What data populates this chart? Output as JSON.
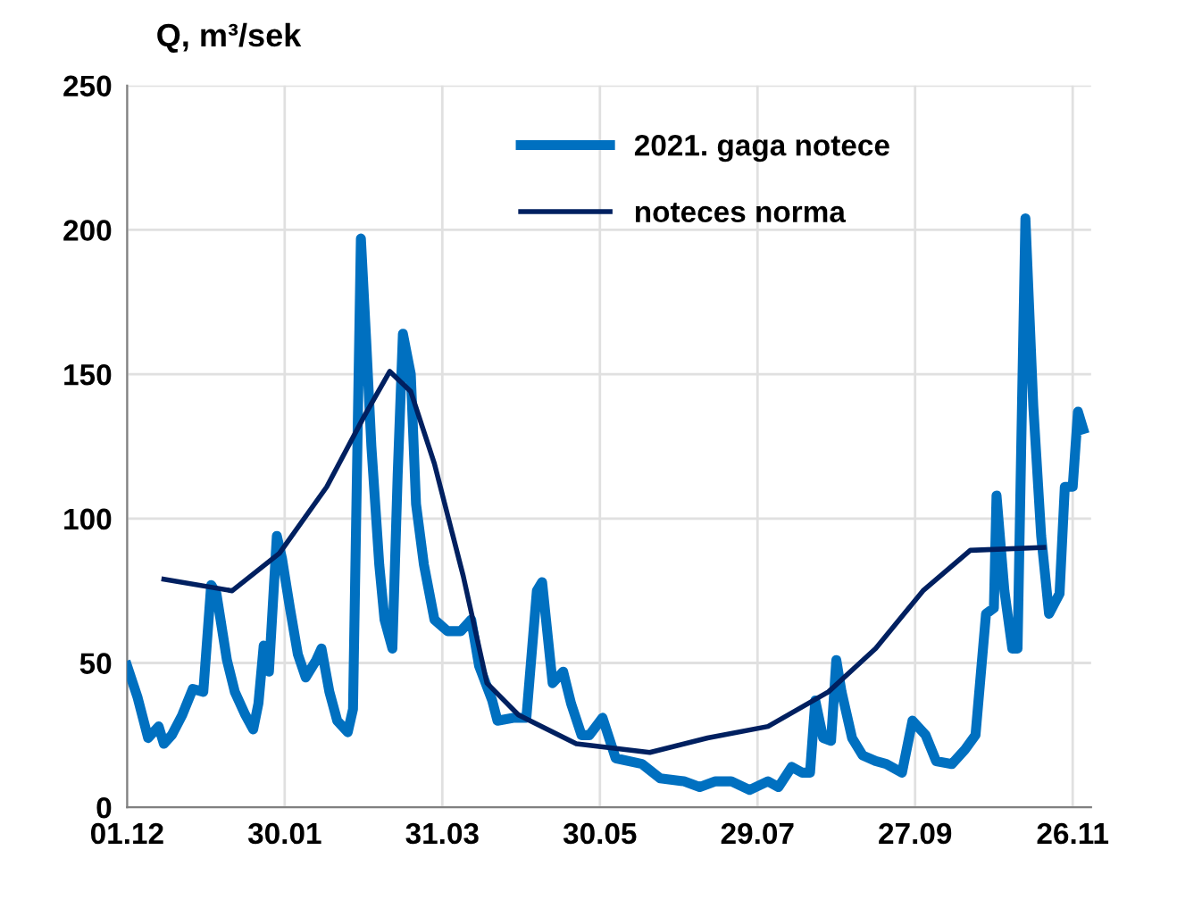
{
  "chart_data": {
    "type": "line",
    "ylabel": "Q, m³/sek",
    "xlim": [
      "2020-12-01",
      "2021-12-03"
    ],
    "ylim": [
      0,
      250
    ],
    "xticks": [
      {
        "value": "2020-12-01",
        "label": "01.12"
      },
      {
        "value": "2021-01-30",
        "label": "30.01"
      },
      {
        "value": "2021-03-31",
        "label": "31.03"
      },
      {
        "value": "2021-05-30",
        "label": "30.05"
      },
      {
        "value": "2021-07-29",
        "label": "29.07"
      },
      {
        "value": "2021-09-27",
        "label": "27.09"
      },
      {
        "value": "2021-11-26",
        "label": "26.11"
      }
    ],
    "yticks": [
      0,
      50,
      100,
      150,
      200,
      250
    ],
    "grid": true,
    "legend": "top",
    "marker": "none",
    "line_style": "solid",
    "series": [
      {
        "name": "2021. gaga notece",
        "color": "#0070c0",
        "x": [
          "2020-12-01",
          "2020-12-05",
          "2020-12-09",
          "2020-12-13",
          "2020-12-15",
          "2020-12-18",
          "2020-12-22",
          "2020-12-26",
          "2020-12-30",
          "2021-01-02",
          "2021-01-04",
          "2021-01-08",
          "2021-01-11",
          "2021-01-15",
          "2021-01-18",
          "2021-01-20",
          "2021-01-22",
          "2021-01-24",
          "2021-01-27",
          "2021-01-29",
          "2021-02-01",
          "2021-02-04",
          "2021-02-07",
          "2021-02-11",
          "2021-02-13",
          "2021-02-16",
          "2021-02-19",
          "2021-02-23",
          "2021-02-25",
          "2021-02-28",
          "2021-03-02",
          "2021-03-04",
          "2021-03-07",
          "2021-03-09",
          "2021-03-12",
          "2021-03-14",
          "2021-03-16",
          "2021-03-19",
          "2021-03-21",
          "2021-03-24",
          "2021-03-28",
          "2021-04-02",
          "2021-04-07",
          "2021-04-11",
          "2021-04-14",
          "2021-04-19",
          "2021-04-21",
          "2021-04-27",
          "2021-05-02",
          "2021-05-06",
          "2021-05-08",
          "2021-05-12",
          "2021-05-16",
          "2021-05-19",
          "2021-05-23",
          "2021-05-26",
          "2021-05-31",
          "2021-06-05",
          "2021-06-15",
          "2021-06-22",
          "2021-07-01",
          "2021-07-07",
          "2021-07-13",
          "2021-07-19",
          "2021-07-26",
          "2021-08-02",
          "2021-08-06",
          "2021-08-11",
          "2021-08-15",
          "2021-08-18",
          "2021-08-20",
          "2021-08-23",
          "2021-08-26",
          "2021-08-28",
          "2021-08-30",
          "2021-09-03",
          "2021-09-07",
          "2021-09-12",
          "2021-09-16",
          "2021-09-22",
          "2021-09-26",
          "2021-10-01",
          "2021-10-05",
          "2021-10-11",
          "2021-10-16",
          "2021-10-20",
          "2021-10-24",
          "2021-10-27",
          "2021-10-28",
          "2021-10-31",
          "2021-11-03",
          "2021-11-05",
          "2021-11-08",
          "2021-11-11",
          "2021-11-14",
          "2021-11-17",
          "2021-11-21",
          "2021-11-23",
          "2021-11-26",
          "2021-11-28",
          "2021-11-30"
        ],
        "values": [
          49,
          38,
          24,
          28,
          22,
          25,
          32,
          41,
          40,
          77,
          74,
          51,
          40,
          32,
          27,
          36,
          56,
          47,
          94,
          86,
          69,
          53,
          45,
          51,
          55,
          40,
          30,
          26,
          34,
          197,
          162,
          125,
          84,
          65,
          55,
          115,
          164,
          150,
          105,
          84,
          65,
          61,
          61,
          65,
          49,
          37,
          30,
          31,
          31,
          75,
          78,
          43,
          47,
          36,
          25,
          25,
          31,
          17,
          15,
          10,
          9,
          7,
          9,
          9,
          6,
          9,
          7,
          14,
          12,
          12,
          37,
          24,
          23,
          51,
          40,
          24,
          18,
          16,
          15,
          12,
          30,
          25,
          16,
          15,
          20,
          25,
          67,
          69,
          108,
          75,
          55,
          55,
          204,
          139,
          94,
          67,
          74,
          111,
          111,
          137,
          131
        ]
      },
      {
        "name": "noteces norma",
        "color": "#002060",
        "x": [
          "2020-12-15",
          "2021-01-10",
          "2021-01-28",
          "2021-02-15",
          "2021-03-01",
          "2021-03-11",
          "2021-03-19",
          "2021-03-28",
          "2021-04-08",
          "2021-04-17",
          "2021-04-29",
          "2021-05-21",
          "2021-06-18",
          "2021-07-10",
          "2021-08-02",
          "2021-08-25",
          "2021-09-12",
          "2021-09-30",
          "2021-10-18",
          "2021-11-15"
        ],
        "values": [
          79,
          75,
          88,
          111,
          135,
          151,
          144,
          119,
          80,
          43,
          32,
          22,
          19,
          24,
          28,
          40,
          55,
          75,
          89,
          90
        ]
      }
    ]
  }
}
